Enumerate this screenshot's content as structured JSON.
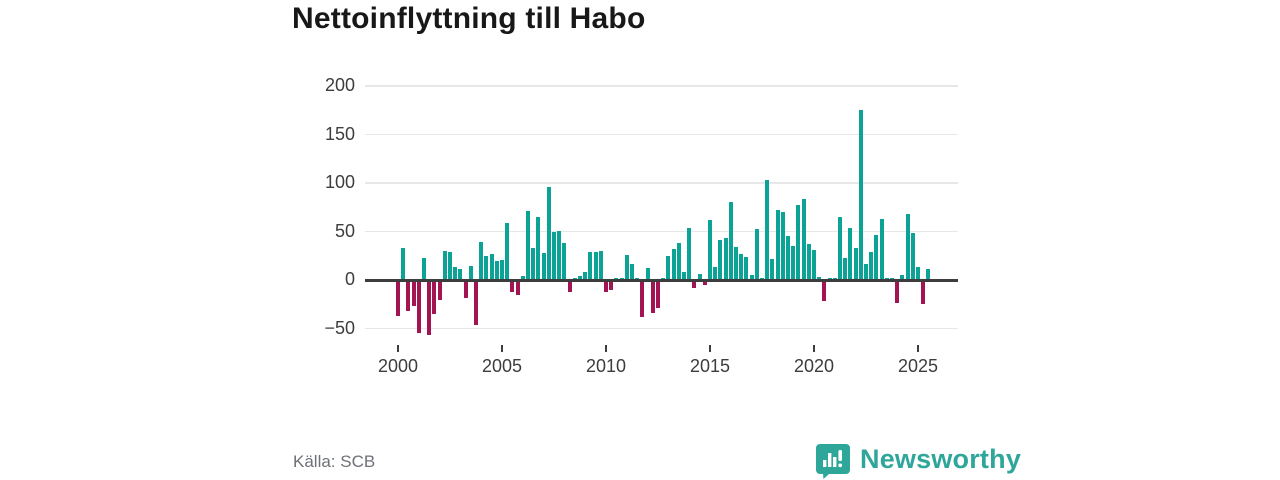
{
  "title": "Nettoinflyttning till Habo",
  "source": "Källa: SCB",
  "logo": {
    "text": "Newsworthy",
    "color": "#2fa69a",
    "icon": "newsworthy-speech-bubble-bar-chart-icon"
  },
  "colors": {
    "positive": "#0aa396",
    "negative": "#a31552",
    "axis": "#3d3d3d",
    "grid": "#e7e7e7",
    "tick_label": "#3d3d3d",
    "title_text": "#181818",
    "source_text": "#6e7177"
  },
  "chart_data": {
    "type": "bar",
    "title": "Nettoinflyttning till Habo",
    "x_unit": "quarter",
    "start": "2000Q1",
    "end": "2025Q3",
    "grid": "horizontal",
    "ylim": [
      -60,
      210
    ],
    "y_ticks": [
      {
        "v": 200,
        "label": "200"
      },
      {
        "v": 150,
        "label": "150"
      },
      {
        "v": 100,
        "label": "100"
      },
      {
        "v": 50,
        "label": "50"
      },
      {
        "v": 0,
        "label": "0"
      },
      {
        "v": -50,
        "label": "−50"
      }
    ],
    "x_ticks": [
      {
        "year": 2000,
        "label": "2000"
      },
      {
        "year": 2005,
        "label": "2005"
      },
      {
        "year": 2010,
        "label": "2010"
      },
      {
        "year": 2015,
        "label": "2015"
      },
      {
        "year": 2020,
        "label": "2020"
      },
      {
        "year": 2025,
        "label": "2025"
      }
    ],
    "values": [
      -36,
      33,
      -31,
      -26,
      -54,
      23,
      -56,
      -34,
      -20,
      30,
      29,
      13,
      11,
      -18,
      14,
      -45,
      39,
      25,
      27,
      20,
      21,
      59,
      -11,
      -14,
      4,
      71,
      33,
      65,
      28,
      96,
      49,
      51,
      38,
      -11,
      2,
      4,
      8,
      29,
      29,
      30,
      -11,
      -9,
      2,
      2,
      26,
      16,
      2,
      -37,
      12,
      -33,
      -28,
      2,
      25,
      32,
      38,
      8,
      54,
      -7,
      6,
      -4,
      62,
      13,
      41,
      43,
      80,
      34,
      27,
      24,
      5,
      53,
      2,
      103,
      22,
      72,
      70,
      45,
      35,
      77,
      84,
      37,
      31,
      3,
      -21,
      2,
      2,
      65,
      23,
      54,
      33,
      175,
      17,
      29,
      46,
      63,
      2,
      2,
      -23,
      5,
      68,
      48,
      13,
      -24,
      11
    ]
  }
}
